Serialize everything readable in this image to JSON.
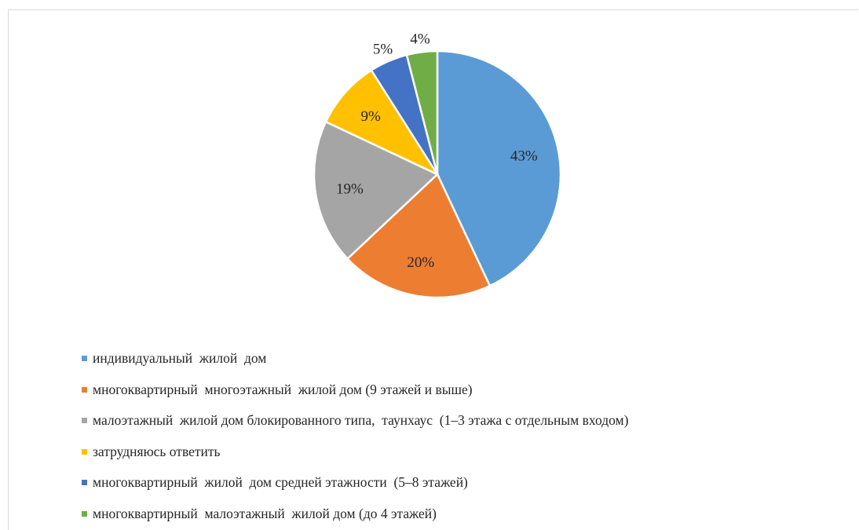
{
  "chart_data": {
    "type": "pie",
    "title": "",
    "legend_position": "bottom",
    "slices": [
      {
        "label": "индивидуальный  жилой  дом",
        "value": 43,
        "value_label": "43%",
        "color": "#5b9bd5"
      },
      {
        "label": "многоквартирный  многоэтажный  жилой дом (9 этажей и выше)",
        "value": 20,
        "value_label": "20%",
        "color": "#ed7d31"
      },
      {
        "label": "малоэтажный  жилой дом блокированного типа,  таунхаус  (1–3 этажа с отдельным входом)",
        "value": 19,
        "value_label": "19%",
        "color": "#a5a5a5"
      },
      {
        "label": "затрудняюсь ответить",
        "value": 9,
        "value_label": "9%",
        "color": "#ffc000"
      },
      {
        "label": "многоквартирный  жилой  дом средней этажности  (5–8 этажей)",
        "value": 5,
        "value_label": "5%",
        "color": "#4472c4"
      },
      {
        "label": "многоквартирный  малоэтажный  жилой дом (до 4 этажей)",
        "value": 4,
        "value_label": "4%",
        "color": "#70ad47"
      }
    ]
  }
}
